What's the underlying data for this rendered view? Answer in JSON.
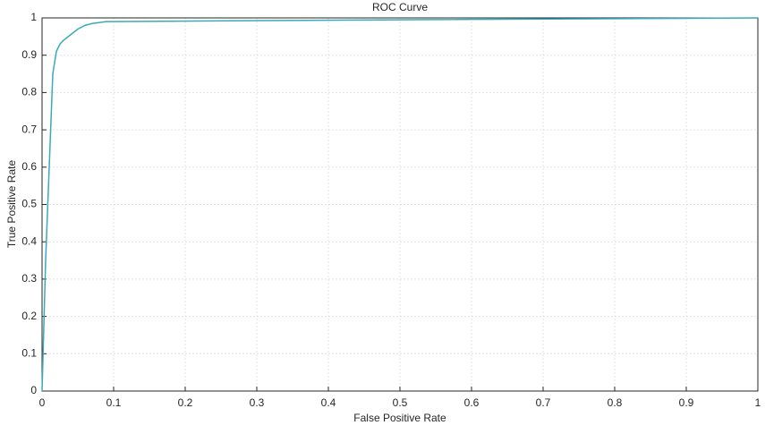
{
  "chart_data": {
    "type": "line",
    "title": "ROC Curve",
    "x_label": "False Positive Rate",
    "y_label": "True Positive Rate",
    "x": [
      0,
      0.005,
      0.01,
      0.015,
      0.02,
      0.025,
      0.03,
      0.04,
      0.05,
      0.06,
      0.07,
      0.09,
      0.5,
      1
    ],
    "series": [
      {
        "name": "ROC",
        "color": "#3aa9b8",
        "values": [
          0,
          0.35,
          0.6,
          0.85,
          0.91,
          0.93,
          0.94,
          0.955,
          0.97,
          0.98,
          0.985,
          0.99,
          0.995,
          1
        ]
      }
    ],
    "xlim": [
      0,
      1
    ],
    "ylim": [
      0,
      1
    ],
    "xticks": [
      0,
      0.1,
      0.2,
      0.3,
      0.4,
      0.5,
      0.6,
      0.7,
      0.8,
      0.9,
      1
    ],
    "yticks": [
      0,
      0.1,
      0.2,
      0.3,
      0.4,
      0.5,
      0.6,
      0.7,
      0.8,
      0.9,
      1
    ],
    "grid": true
  }
}
